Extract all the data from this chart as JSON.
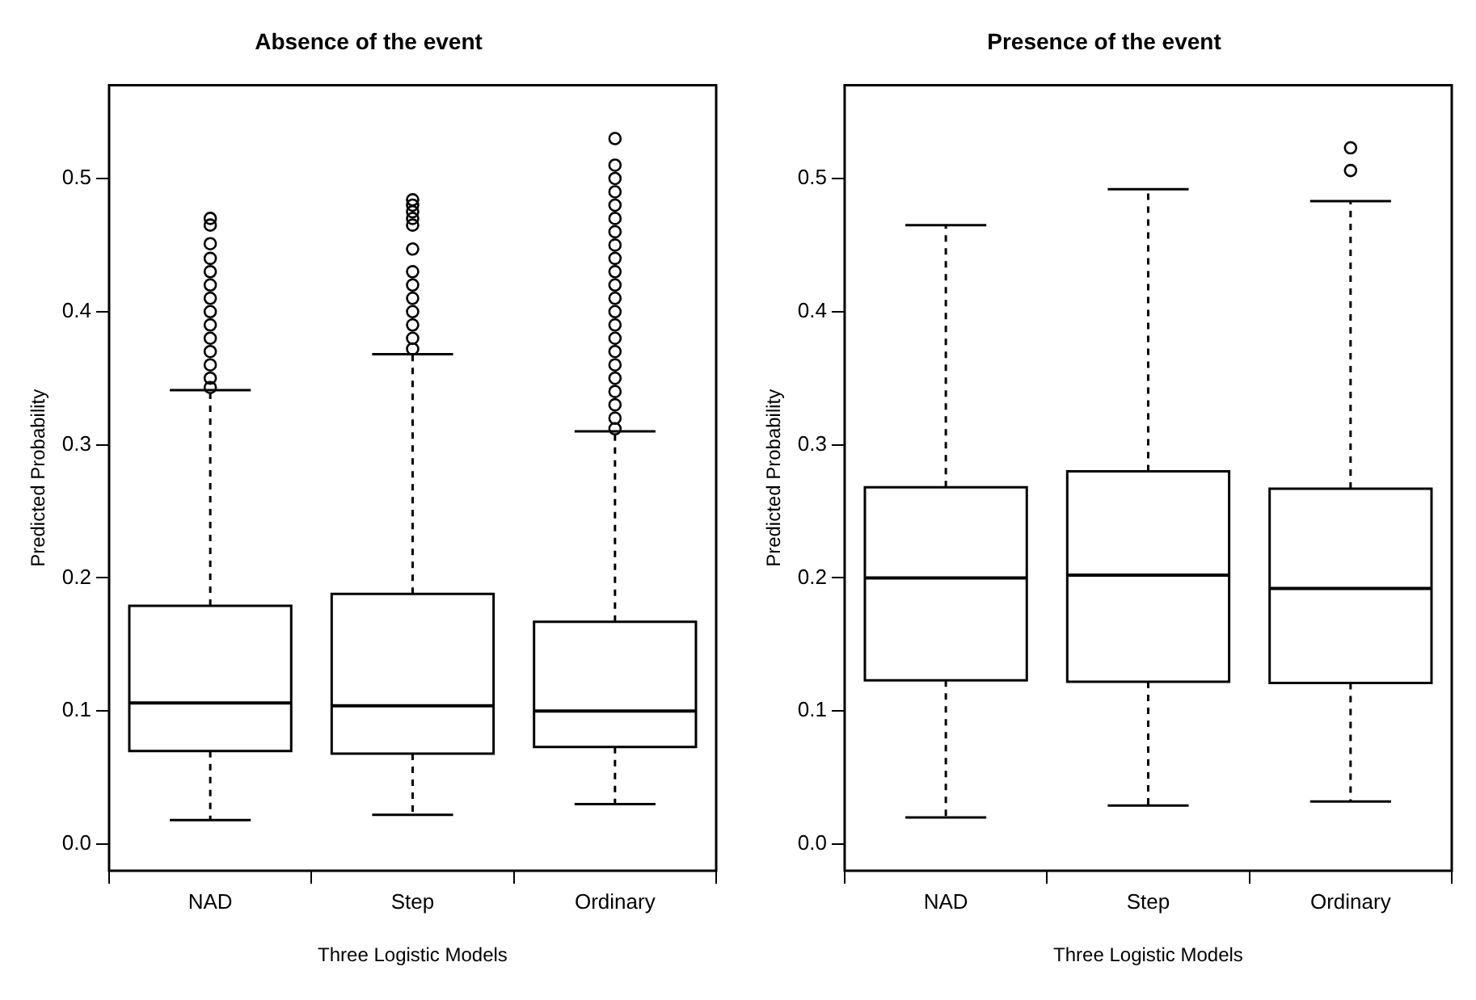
{
  "chart_data": [
    {
      "type": "box",
      "title": "Absence of the event",
      "xlabel": "Three Logistic Models",
      "ylabel": "Predicted Probability",
      "categories": [
        "NAD",
        "Step",
        "Ordinary"
      ],
      "boxes": [
        {
          "low": 0.018,
          "q1": 0.07,
          "median": 0.106,
          "q3": 0.179,
          "high": 0.341,
          "outliers": [
            0.343,
            0.35,
            0.36,
            0.37,
            0.38,
            0.39,
            0.4,
            0.41,
            0.42,
            0.43,
            0.44,
            0.451,
            0.465,
            0.47
          ]
        },
        {
          "low": 0.022,
          "q1": 0.068,
          "median": 0.104,
          "q3": 0.188,
          "high": 0.368,
          "outliers": [
            0.372,
            0.38,
            0.39,
            0.4,
            0.41,
            0.42,
            0.43,
            0.447,
            0.465,
            0.47,
            0.475,
            0.48,
            0.484
          ]
        },
        {
          "low": 0.03,
          "q1": 0.073,
          "median": 0.1,
          "q3": 0.167,
          "high": 0.31,
          "outliers": [
            0.312,
            0.32,
            0.33,
            0.34,
            0.35,
            0.36,
            0.37,
            0.38,
            0.39,
            0.4,
            0.41,
            0.42,
            0.43,
            0.44,
            0.45,
            0.46,
            0.47,
            0.48,
            0.49,
            0.5,
            0.51,
            0.53
          ]
        }
      ],
      "ylim": [
        -0.02,
        0.57
      ],
      "yticks": [
        {
          "value": 0,
          "label": "0.0"
        },
        0.1,
        0.2,
        0.3,
        0.4,
        0.5
      ],
      "grid": false
    },
    {
      "type": "box",
      "title": "Presence of the event",
      "xlabel": "Three Logistic Models",
      "ylabel": "Predicted Probability",
      "categories": [
        "NAD",
        "Step",
        "Ordinary"
      ],
      "boxes": [
        {
          "low": 0.02,
          "q1": 0.123,
          "median": 0.2,
          "q3": 0.268,
          "high": 0.465
        },
        {
          "low": 0.029,
          "q1": 0.122,
          "median": 0.202,
          "q3": 0.28,
          "high": 0.492
        },
        {
          "low": 0.032,
          "q1": 0.121,
          "median": 0.192,
          "q3": 0.267,
          "high": 0.483,
          "outliers": [
            0.506,
            0.523
          ]
        }
      ],
      "ylim": [
        -0.02,
        0.57
      ],
      "yticks": [
        {
          "value": 0,
          "label": "0.0"
        },
        0.1,
        0.2,
        0.3,
        0.4,
        0.5
      ],
      "grid": false
    }
  ]
}
